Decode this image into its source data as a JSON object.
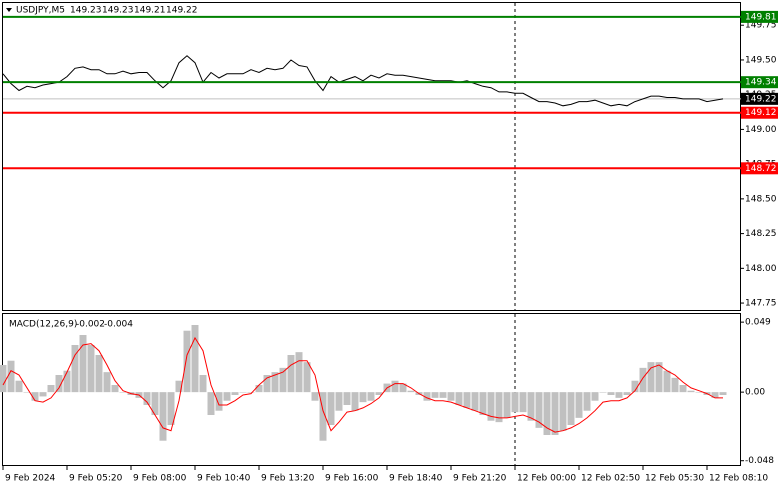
{
  "chart_data": [
    {
      "type": "line",
      "symbol": "USDJPY,M5",
      "ohlc": [
        149.23,
        149.23,
        149.21,
        149.22
      ],
      "color": "#000000",
      "x": [
        0,
        4,
        8,
        12,
        16,
        20,
        24,
        28,
        32,
        36,
        40,
        44,
        48,
        52,
        56,
        60,
        64,
        68,
        72,
        76,
        80,
        84,
        88,
        92,
        96,
        100,
        104,
        108,
        112,
        116,
        120,
        124,
        128,
        132,
        136,
        140,
        144,
        148,
        152,
        156,
        160,
        164,
        168,
        172,
        176,
        180,
        184,
        188,
        192,
        196,
        200,
        204,
        208,
        212,
        216,
        220,
        224,
        228,
        232,
        236,
        240,
        244,
        248,
        252,
        256,
        260,
        264,
        268,
        272,
        276,
        280,
        284,
        288,
        292,
        296,
        300,
        304,
        308,
        312,
        316,
        320,
        324,
        328,
        332,
        336,
        340,
        344,
        348,
        352,
        356,
        360
      ],
      "values": [
        149.4,
        149.33,
        149.28,
        149.31,
        149.3,
        149.32,
        149.33,
        149.34,
        149.38,
        149.44,
        149.45,
        149.43,
        149.43,
        149.4,
        149.4,
        149.42,
        149.4,
        149.41,
        149.41,
        149.35,
        149.3,
        149.35,
        149.48,
        149.53,
        149.48,
        149.34,
        149.41,
        149.37,
        149.4,
        149.4,
        149.4,
        149.43,
        149.41,
        149.44,
        149.43,
        149.44,
        149.5,
        149.46,
        149.45,
        149.35,
        149.28,
        149.38,
        149.34,
        149.36,
        149.38,
        149.35,
        149.39,
        149.37,
        149.4,
        149.39,
        149.39,
        149.38,
        149.37,
        149.36,
        149.35,
        149.35,
        149.35,
        149.34,
        149.35,
        149.33,
        149.31,
        149.3,
        149.27,
        149.27,
        149.26,
        149.26,
        149.23,
        149.2,
        149.2,
        149.19,
        149.17,
        149.18,
        149.2,
        149.2,
        149.21,
        149.19,
        149.17,
        149.18,
        149.17,
        149.2,
        149.22,
        149.24,
        149.24,
        149.23,
        149.23,
        149.22,
        149.22,
        149.22,
        149.2,
        149.21,
        149.22
      ],
      "xlim": [
        0,
        369
      ],
      "vline_x": 256,
      "ylim": [
        147.7,
        149.91
      ],
      "yticks": [
        149.75,
        {
          "value": 149.5,
          "label": "149.50"
        },
        149.25,
        {
          "value": 149,
          "label": "149.00"
        },
        148.75,
        {
          "value": 148.5,
          "label": "148.50"
        },
        148.25,
        {
          "value": 148,
          "label": "148.00"
        },
        147.75
      ],
      "levels": [
        {
          "value": 149.81,
          "color": "#008000"
        },
        {
          "value": 149.34,
          "color": "#008000"
        },
        {
          "value": 149.12,
          "color": "#ff0000"
        },
        {
          "value": 148.72,
          "color": "#ff0000"
        }
      ]
    },
    {
      "type": "bar",
      "title": "MACD(12,26,9)",
      "main": -0.002,
      "signal": -0.004,
      "ylim": [
        -0.051,
        0.054
      ],
      "yticks": [
        0.049,
        {
          "value": 0,
          "label": "0.00"
        },
        -0.048
      ],
      "xticks": [
        {
          "value": 0,
          "label": "9 Feb 2024"
        },
        {
          "value": 32,
          "label": "9 Feb 05:20"
        },
        {
          "value": 64,
          "label": "9 Feb 08:00"
        },
        {
          "value": 96,
          "label": "9 Feb 10:40"
        },
        {
          "value": 128,
          "label": "9 Feb 13:20"
        },
        {
          "value": 160,
          "label": "9 Feb 16:00"
        },
        {
          "value": 192,
          "label": "9 Feb 18:40"
        },
        {
          "value": 224,
          "label": "9 Feb 21:20"
        },
        {
          "value": 256,
          "label": "12 Feb 00:00"
        },
        {
          "value": 288,
          "label": "12 Feb 02:50"
        },
        {
          "value": 320,
          "label": "12 Feb 05:30"
        },
        {
          "value": 352,
          "label": "12 Feb 08:10"
        }
      ],
      "series": [
        {
          "type": "bar",
          "color": "#c0c0c0",
          "values": [
            0.019,
            0.022,
            0.008,
            0,
            -0.006,
            -0.003,
            0.005,
            0.012,
            0.015,
            0.033,
            0.04,
            0.033,
            0.026,
            0.014,
            0.005,
            0,
            -0.002,
            -0.004,
            -0.009,
            -0.016,
            -0.034,
            -0.023,
            0.008,
            0.043,
            0.047,
            0.012,
            -0.016,
            -0.013,
            -0.006,
            -0.002,
            0,
            0,
            0.005,
            0.012,
            0.014,
            0.017,
            0.026,
            0.028,
            0.021,
            -0.006,
            -0.034,
            -0.023,
            -0.013,
            -0.009,
            -0.013,
            -0.007,
            -0.006,
            -0.002,
            0.006,
            0.008,
            0.006,
            0.001,
            -0.002,
            -0.006,
            -0.004,
            -0.004,
            -0.006,
            -0.009,
            -0.011,
            -0.013,
            -0.016,
            -0.02,
            -0.021,
            -0.018,
            -0.014,
            -0.014,
            -0.02,
            -0.025,
            -0.03,
            -0.03,
            -0.027,
            -0.023,
            -0.018,
            -0.013,
            -0.006,
            0,
            -0.002,
            -0.004,
            -0.002,
            0.008,
            0.017,
            0.021,
            0.021,
            0.015,
            0.01,
            0.005,
            0.001,
            0,
            -0.002,
            -0.004,
            -0.002
          ]
        },
        {
          "type": "line",
          "color": "#ff0000",
          "values": [
            0.005,
            0.015,
            0.012,
            0.003,
            -0.006,
            -0.007,
            -0.004,
            0.003,
            0.014,
            0.026,
            0.033,
            0.034,
            0.029,
            0.019,
            0.008,
            0.001,
            -0.001,
            -0.002,
            -0.007,
            -0.016,
            -0.025,
            -0.027,
            -0.006,
            0.026,
            0.038,
            0.029,
            0.005,
            -0.009,
            -0.009,
            -0.006,
            -0.002,
            -0.001,
            0.005,
            0.01,
            0.012,
            0.014,
            0.019,
            0.022,
            0.022,
            0.012,
            -0.013,
            -0.027,
            -0.021,
            -0.014,
            -0.013,
            -0.011,
            -0.008,
            -0.004,
            0.003,
            0.006,
            0.006,
            0.003,
            -0.001,
            -0.004,
            -0.006,
            -0.006,
            -0.007,
            -0.009,
            -0.011,
            -0.013,
            -0.015,
            -0.017,
            -0.018,
            -0.018,
            -0.017,
            -0.016,
            -0.018,
            -0.021,
            -0.025,
            -0.028,
            -0.027,
            -0.025,
            -0.022,
            -0.018,
            -0.013,
            -0.007,
            -0.006,
            -0.006,
            -0.004,
            0.001,
            0.01,
            0.017,
            0.019,
            0.015,
            0.012,
            0.007,
            0.003,
            0.001,
            -0.001,
            -0.004,
            -0.004
          ]
        }
      ]
    }
  ]
}
